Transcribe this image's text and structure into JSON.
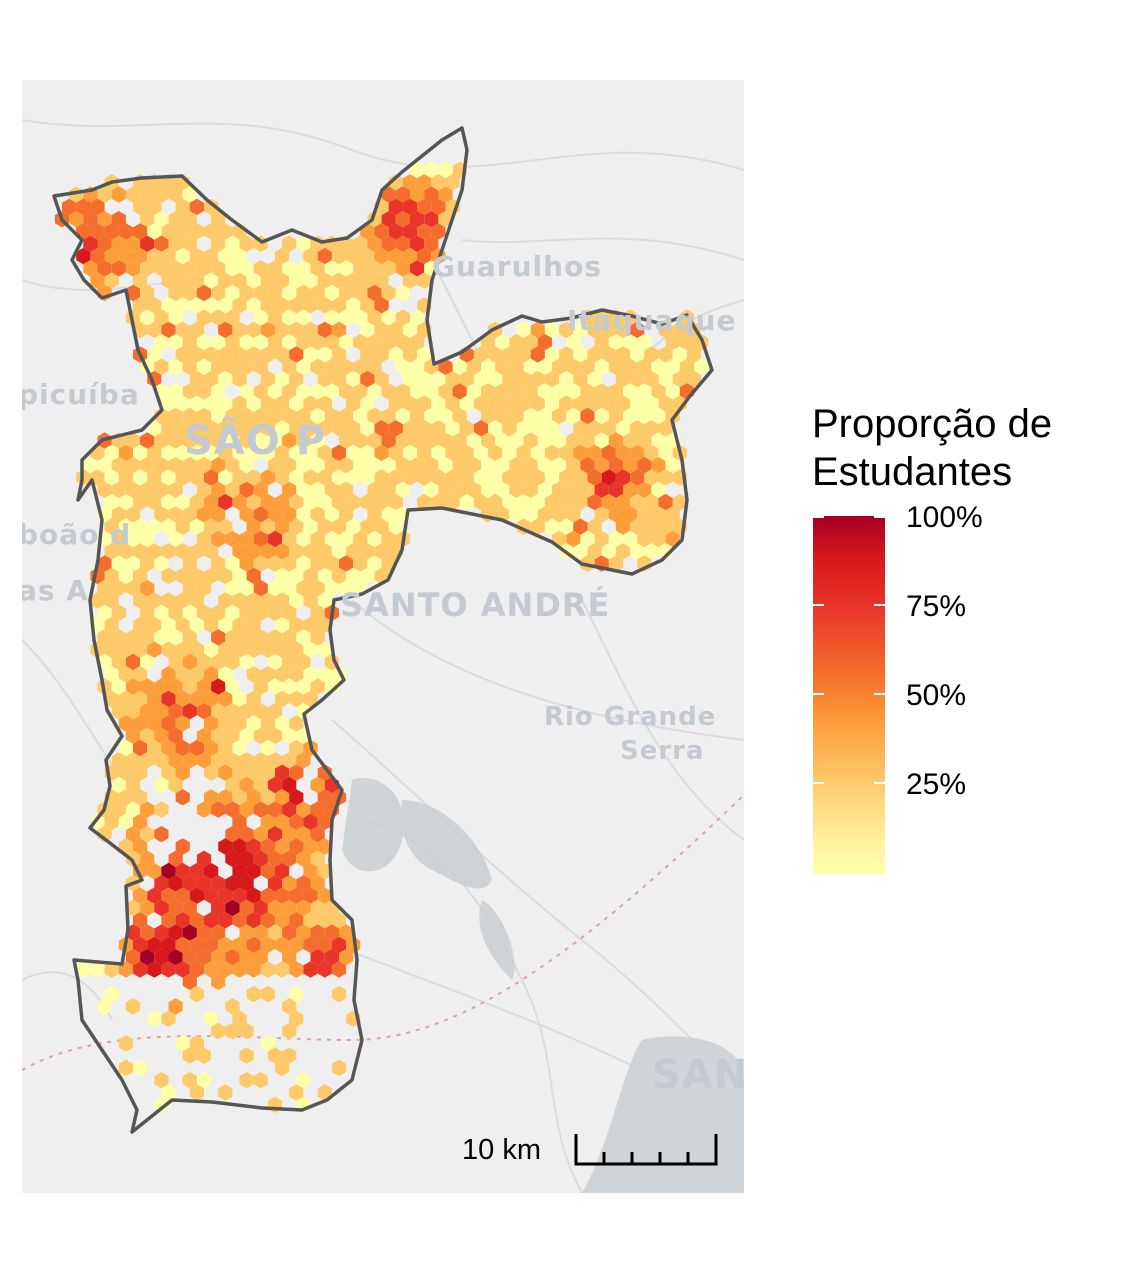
{
  "basemap": {
    "labels": [
      "Guarulhos",
      "Itaquaque",
      "picuíba",
      "SÃO P",
      "boão d",
      "as A",
      "SANTO ANDRÉ",
      "Rio Grande",
      "Serra",
      "SAN"
    ]
  },
  "legend": {
    "title_line1": "Proporção de",
    "title_line2": "Estudantes",
    "ticks": [
      "100%",
      "75%",
      "50%",
      "25%"
    ],
    "tick_values": [
      1.0,
      0.75,
      0.5,
      0.25
    ],
    "colors": [
      "#ffffa8",
      "#fdc969",
      "#fd9e3b",
      "#f46d2c",
      "#e9342a",
      "#d7191c",
      "#a50026"
    ]
  },
  "scalebar": {
    "label": "10 km"
  },
  "colors": {
    "boundary": "#555555",
    "background": "#eeefee"
  }
}
